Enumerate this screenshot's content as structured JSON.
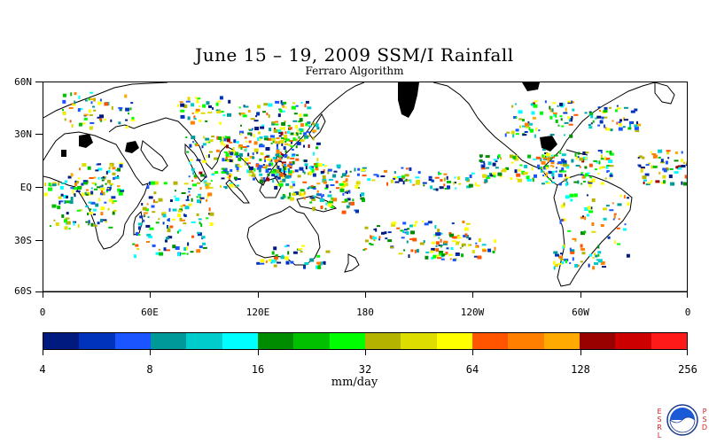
{
  "title": "June 15 – 19, 2009 SSM/I Rainfall",
  "subtitle": "Ferraro Algorithm",
  "map": {
    "lat_labels": [
      "60N",
      "30N",
      "EQ",
      "30S",
      "60S"
    ],
    "lon_labels": [
      "0",
      "60E",
      "120E",
      "180",
      "120W",
      "60W",
      "0"
    ]
  },
  "colorbar": {
    "colors": [
      "#001a80",
      "#0033bb",
      "#1a55ff",
      "#009999",
      "#00cccc",
      "#00ffff",
      "#008c00",
      "#00c000",
      "#00ff00",
      "#b3b300",
      "#dddd00",
      "#ffff00",
      "#ff5500",
      "#ff8000",
      "#ffaa00",
      "#990000",
      "#cc0000",
      "#ff1a1a"
    ],
    "labels": [
      "4",
      "8",
      "16",
      "32",
      "64",
      "128",
      "256"
    ],
    "units": "mm/day"
  },
  "logo": {
    "left_letters": [
      "E",
      "S",
      "R",
      "L"
    ],
    "right_letters": [
      "P",
      "S",
      "D"
    ],
    "seal_text": "NOAA"
  }
}
